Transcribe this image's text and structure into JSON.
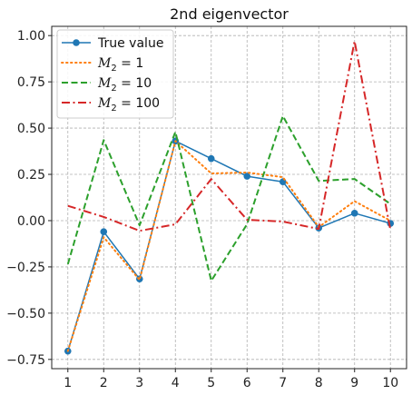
{
  "chart_data": {
    "type": "line",
    "title": "2nd eigenvector",
    "xlabel": "",
    "ylabel": "",
    "x": [
      1,
      2,
      3,
      4,
      5,
      6,
      7,
      8,
      9,
      10
    ],
    "xlim": [
      0.55,
      10.45
    ],
    "ylim": [
      -0.8,
      1.05
    ],
    "xticks": [
      1,
      2,
      3,
      4,
      5,
      6,
      7,
      8,
      9,
      10
    ],
    "yticks": [
      -0.75,
      -0.5,
      -0.25,
      0.0,
      0.25,
      0.5,
      0.75,
      1.0
    ],
    "ytick_labels": [
      "−0.75",
      "−0.50",
      "−0.25",
      "0.00",
      "0.25",
      "0.50",
      "0.75",
      "1.00"
    ],
    "grid": true,
    "legend_position": "top-left",
    "series": [
      {
        "name": "True value",
        "label_parts": [
          {
            "t": "True value",
            "italic": false
          }
        ],
        "color": "#1f77b4",
        "style": "solid-marker",
        "values": [
          -0.705,
          -0.06,
          -0.315,
          0.43,
          0.335,
          0.24,
          0.21,
          -0.04,
          0.04,
          -0.015
        ]
      },
      {
        "name": "M2 = 1",
        "label_parts": [
          {
            "t": "M",
            "italic": true
          },
          {
            "t": "2",
            "sub": true
          },
          {
            "t": " = 1",
            "italic": false
          }
        ],
        "color": "#ff7f0e",
        "style": "dotted",
        "values": [
          -0.705,
          -0.09,
          -0.32,
          0.43,
          0.255,
          0.26,
          0.235,
          -0.035,
          0.105,
          0.0
        ]
      },
      {
        "name": "M2 = 10",
        "label_parts": [
          {
            "t": "M",
            "italic": true
          },
          {
            "t": "2",
            "sub": true
          },
          {
            "t": " = 10",
            "italic": false
          }
        ],
        "color": "#2ca02c",
        "style": "dashed",
        "values": [
          -0.235,
          0.435,
          -0.025,
          0.48,
          -0.325,
          -0.02,
          0.565,
          0.215,
          0.225,
          0.09
        ]
      },
      {
        "name": "M2 = 100",
        "label_parts": [
          {
            "t": "M",
            "italic": true
          },
          {
            "t": "2",
            "sub": true
          },
          {
            "t": " = 100",
            "italic": false
          }
        ],
        "color": "#d62728",
        "style": "dashdot",
        "values": [
          0.08,
          0.02,
          -0.055,
          -0.02,
          0.225,
          0.005,
          -0.005,
          -0.045,
          0.97,
          -0.05
        ]
      }
    ]
  }
}
